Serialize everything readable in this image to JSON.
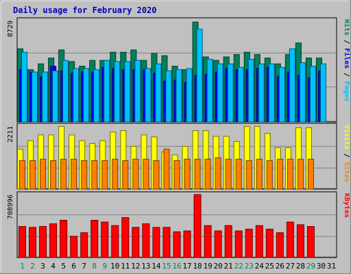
{
  "chart_data": {
    "type": "bar",
    "title": "Daily usage for February 2020",
    "categories": [
      "1",
      "2",
      "3",
      "4",
      "5",
      "6",
      "7",
      "8",
      "9",
      "10",
      "11",
      "12",
      "13",
      "14",
      "15",
      "16",
      "17",
      "18",
      "19",
      "20",
      "21",
      "22",
      "23",
      "24",
      "25",
      "26",
      "27",
      "28",
      "29",
      "30",
      "31"
    ],
    "weekend_days": [
      "1",
      "2",
      "8",
      "9",
      "15",
      "16",
      "22",
      "23",
      "29"
    ],
    "panels": [
      {
        "name": "hits-panel",
        "ylim": [
          0,
          8729
        ],
        "max_label": "8729",
        "right_labels": [
          {
            "text": "Hits",
            "color": "#00805c"
          },
          {
            "text": "Files",
            "color": "#0000ff"
          },
          {
            "text": "Pages",
            "color": "#00c0ff"
          }
        ],
        "series": [
          {
            "name": "Hits",
            "color": "#00805c",
            "values": [
              6300,
              4500,
              5000,
              5500,
              6200,
              5200,
              4800,
              5300,
              5300,
              6000,
              6000,
              6200,
              5300,
              5900,
              5700,
              4800,
              4500,
              8600,
              5600,
              5300,
              5600,
              5800,
              6000,
              5800,
              5500,
              5000,
              5800,
              6800,
              5500,
              5500,
              null
            ]
          },
          {
            "name": "Files",
            "color": "#0000ff",
            "values": [
              4500,
              4300,
              3900,
              4800,
              4400,
              4200,
              4300,
              4300,
              4700,
              4600,
              4500,
              4500,
              4500,
              4200,
              3500,
              3600,
              3400,
              4000,
              4100,
              4300,
              4600,
              4500,
              4500,
              4600,
              4700,
              3900,
              4300,
              4000,
              3800,
              4400,
              null
            ]
          },
          {
            "name": "Pages",
            "color": "#00c0ff",
            "values": [
              6000,
              4300,
              4300,
              4400,
              5300,
              4600,
              4600,
              4500,
              5300,
              5200,
              5200,
              5300,
              4600,
              5000,
              4400,
              4500,
              4600,
              8000,
              5400,
              5000,
              5000,
              4700,
              5400,
              5000,
              5000,
              4700,
              6300,
              5100,
              4800,
              5000,
              null
            ]
          }
        ]
      },
      {
        "name": "visits-panel",
        "ylim": [
          0,
          2211
        ],
        "max_label": "2211",
        "right_labels": [
          {
            "text": "Visits",
            "color": "#ffff00"
          },
          {
            "text": "Sites",
            "color": "#ff8000"
          }
        ],
        "series": [
          {
            "name": "Visits",
            "color": "#ffff00",
            "values": [
              1400,
              1700,
              1900,
              1900,
              2200,
              1900,
              1700,
              1600,
              1700,
              2000,
              2050,
              1500,
              1900,
              1830,
              1300,
              1200,
              1500,
              2050,
              2050,
              1850,
              1850,
              1670,
              2200,
              2200,
              1950,
              1450,
              1450,
              2150,
              2150,
              null,
              null
            ]
          },
          {
            "name": "Sites",
            "color": "#ff8000",
            "values": [
              1000,
              1000,
              1050,
              1000,
              1050,
              1050,
              1000,
              1000,
              1000,
              1050,
              1000,
              1050,
              1050,
              1000,
              1400,
              1000,
              1050,
              1050,
              1050,
              1100,
              1050,
              1050,
              1000,
              1050,
              1000,
              1050,
              1050,
              1050,
              1050,
              null,
              null
            ]
          }
        ]
      },
      {
        "name": "kbytes-panel",
        "ylim": [
          0,
          708996
        ],
        "max_label": "708996",
        "right_labels": [
          {
            "text": "KBytes",
            "color": "#ff0000"
          }
        ],
        "series": [
          {
            "name": "KBytes",
            "color": "#ff0000",
            "values": [
              350000,
              340000,
              350000,
              380000,
              420000,
              240000,
              280000,
              420000,
              400000,
              360000,
              450000,
              340000,
              380000,
              340000,
              340000,
              290000,
              300000,
              708996,
              360000,
              300000,
              360000,
              300000,
              320000,
              360000,
              320000,
              280000,
              400000,
              370000,
              350000,
              null,
              null
            ]
          }
        ]
      }
    ]
  }
}
